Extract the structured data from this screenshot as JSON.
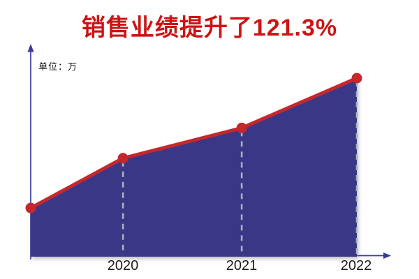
{
  "title": {
    "text": "销售业绩提升了121.3%",
    "color": "#cc1414"
  },
  "chart_data": {
    "type": "area",
    "categories": [
      "",
      "2020",
      "2021",
      "2022"
    ],
    "values": [
      27,
      55,
      72,
      100
    ],
    "title": "销售业绩提升了121.3%",
    "xlabel": "",
    "ylabel": "单位：万",
    "ylim": [
      0,
      105
    ],
    "grid": false,
    "legend": "none",
    "highlight_percent": "121.3%",
    "area_color": "#3b3787",
    "line_color": "#c4282d",
    "marker_color": "#c4282d",
    "axis_color": "#3a3a9a",
    "dash_color": "#a8b2bc",
    "label_color": "#1c1c1c"
  }
}
